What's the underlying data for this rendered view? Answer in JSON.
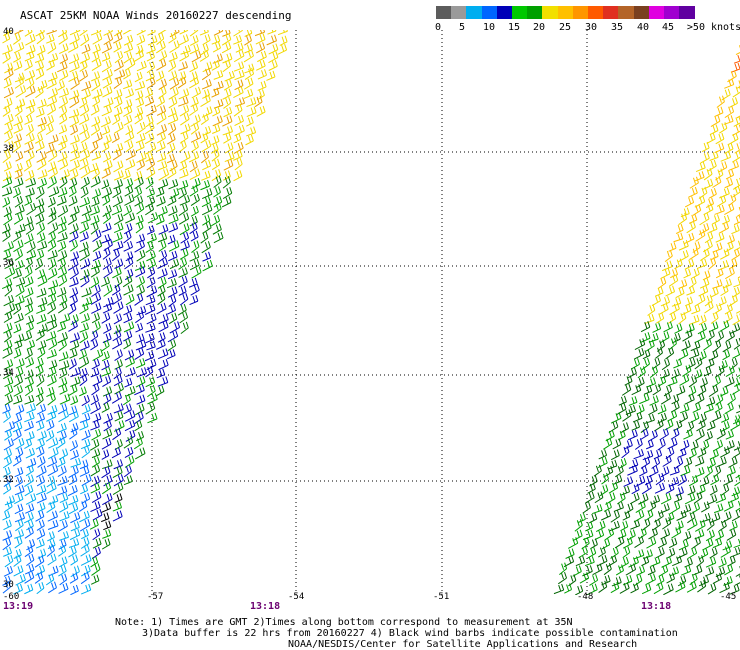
{
  "title": "ASCAT 25KM NOAA Winds 20160227 descending",
  "legend": {
    "colors": [
      "#5c5c5c",
      "#9a9a9a",
      "#00aef0",
      "#0066ff",
      "#0000b8",
      "#00c800",
      "#00a000",
      "#f2e000",
      "#ffc000",
      "#ff9600",
      "#ff5a00",
      "#e03020",
      "#b46428",
      "#7a4020",
      "#e000e0",
      "#a000d0",
      "#6000a0"
    ],
    "labels": [
      "0",
      "5",
      "10",
      "15",
      "20",
      "25",
      "30",
      "35",
      "40",
      "45",
      ">50 knots"
    ]
  },
  "lat_labels": [
    "40",
    "38",
    "36",
    "34",
    "32",
    "30"
  ],
  "lon_labels": [
    "-60",
    "-57",
    "-54",
    "-51",
    "-48",
    "-45"
  ],
  "time_labels": [
    "13:19",
    "13:18",
    "13:18"
  ],
  "notes": [
    "Note: 1) Times are GMT 2)Times along bottom correspond to measurement at 35N",
    "3)Data buffer is 22 hrs from 20160227 4) Black wind barbs indicate possible contamination",
    "NOAA/NESDIS/Center for Satellite Applications and Research"
  ]
}
